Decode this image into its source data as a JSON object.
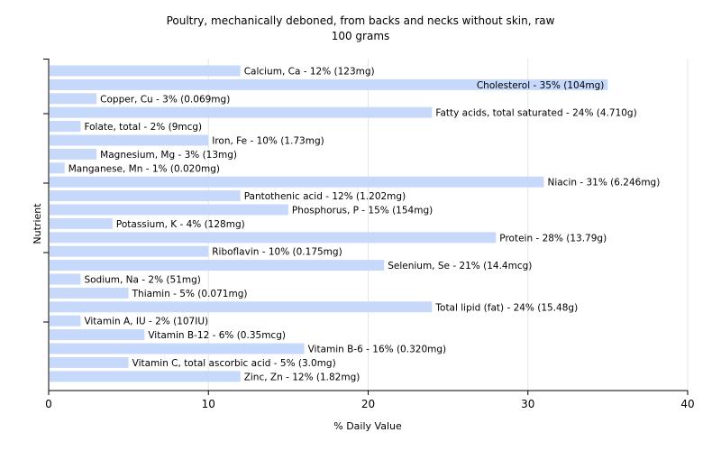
{
  "chart_data": {
    "type": "bar",
    "orientation": "horizontal",
    "title": "Poultry, mechanically deboned, from backs and necks without skin, raw",
    "subtitle": "100 grams",
    "xlabel": "% Daily Value",
    "ylabel": "Nutrient",
    "xlim": [
      0,
      40
    ],
    "xticks": [
      "0",
      "10",
      "20",
      "30",
      "40"
    ],
    "grid": true,
    "bar_color": "#c6d9fb",
    "bars": [
      {
        "category": "Calcium, Ca",
        "value": 12,
        "label": "Calcium, Ca - 12% (123mg)"
      },
      {
        "category": "Cholesterol",
        "value": 35,
        "label": "Cholesterol - 35% (104mg)"
      },
      {
        "category": "Copper, Cu",
        "value": 3,
        "label": "Copper, Cu - 3% (0.069mg)"
      },
      {
        "category": "Fatty acids, total saturated",
        "value": 24,
        "label": "Fatty acids, total saturated - 24% (4.710g)"
      },
      {
        "category": "Folate, total",
        "value": 2,
        "label": "Folate, total - 2% (9mcg)"
      },
      {
        "category": "Iron, Fe",
        "value": 10,
        "label": "Iron, Fe - 10% (1.73mg)"
      },
      {
        "category": "Magnesium, Mg",
        "value": 3,
        "label": "Magnesium, Mg - 3% (13mg)"
      },
      {
        "category": "Manganese, Mn",
        "value": 1,
        "label": "Manganese, Mn - 1% (0.020mg)"
      },
      {
        "category": "Niacin",
        "value": 31,
        "label": "Niacin - 31% (6.246mg)"
      },
      {
        "category": "Pantothenic acid",
        "value": 12,
        "label": "Pantothenic acid - 12% (1.202mg)"
      },
      {
        "category": "Phosphorus, P",
        "value": 15,
        "label": "Phosphorus, P - 15% (154mg)"
      },
      {
        "category": "Potassium, K",
        "value": 4,
        "label": "Potassium, K - 4% (128mg)"
      },
      {
        "category": "Protein",
        "value": 28,
        "label": "Protein - 28% (13.79g)"
      },
      {
        "category": "Riboflavin",
        "value": 10,
        "label": "Riboflavin - 10% (0.175mg)"
      },
      {
        "category": "Selenium, Se",
        "value": 21,
        "label": "Selenium, Se - 21% (14.4mcg)"
      },
      {
        "category": "Sodium, Na",
        "value": 2,
        "label": "Sodium, Na - 2% (51mg)"
      },
      {
        "category": "Thiamin",
        "value": 5,
        "label": "Thiamin - 5% (0.071mg)"
      },
      {
        "category": "Total lipid (fat)",
        "value": 24,
        "label": "Total lipid (fat) - 24% (15.48g)"
      },
      {
        "category": "Vitamin A, IU",
        "value": 2,
        "label": "Vitamin A, IU - 2% (107IU)"
      },
      {
        "category": "Vitamin B-12",
        "value": 6,
        "label": "Vitamin B-12 - 6% (0.35mcg)"
      },
      {
        "category": "Vitamin B-6",
        "value": 16,
        "label": "Vitamin B-6 - 16% (0.320mg)"
      },
      {
        "category": "Vitamin C, total ascorbic acid",
        "value": 5,
        "label": "Vitamin C, total ascorbic acid - 5% (3.0mg)"
      },
      {
        "category": "Zinc, Zn",
        "value": 12,
        "label": "Zinc, Zn - 12% (1.82mg)"
      }
    ]
  }
}
